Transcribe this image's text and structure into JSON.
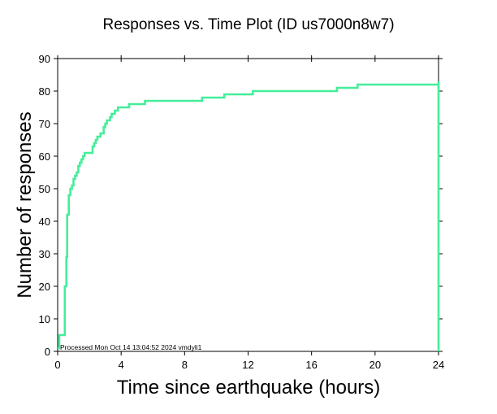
{
  "chart_data": {
    "type": "line",
    "title": "Responses vs. Time Plot (ID us7000n8w7)",
    "xlabel": "Time since earthquake (hours)",
    "ylabel": "Number of responses",
    "xlim": [
      0,
      24
    ],
    "ylim": [
      0,
      90
    ],
    "x_ticks": [
      0,
      4,
      8,
      12,
      16,
      20,
      24
    ],
    "y_ticks": [
      0,
      10,
      20,
      30,
      40,
      50,
      60,
      70,
      80,
      90
    ],
    "x_tick_labels": [
      "0",
      "4",
      "8",
      "12",
      "16",
      "20",
      "24"
    ],
    "y_tick_labels": [
      "0",
      "10",
      "20",
      "30",
      "40",
      "50",
      "60",
      "70",
      "80",
      "90"
    ],
    "line_style": "step",
    "grid": false,
    "footnote": "Processed Mon Oct 14 13:04:52 2024 vmdyli1",
    "colors": {
      "series": "#44ee99",
      "axis": "#000000",
      "background": "#ffffff"
    },
    "series": [
      {
        "x": [
          0.0,
          0.1,
          0.45,
          0.55,
          0.6,
          0.7,
          0.8,
          0.9,
          1.0,
          1.1,
          1.2,
          1.3,
          1.4,
          1.5,
          1.6,
          1.7,
          1.8,
          2.2,
          2.3,
          2.4,
          2.5,
          2.7,
          2.9,
          3.0,
          3.1,
          3.3,
          3.4,
          3.6,
          3.8,
          4.1,
          4.5,
          5.5,
          9.1,
          10.5,
          12.3,
          17.6,
          18.9,
          24.0,
          24.0
        ],
        "y": [
          1,
          5,
          20,
          29,
          42,
          48,
          50,
          51,
          53,
          54,
          55,
          57,
          58,
          59,
          60,
          61,
          61,
          63,
          64,
          65,
          66,
          67,
          69,
          70,
          71,
          72,
          73,
          74,
          75,
          75,
          76,
          77,
          78,
          79,
          80,
          81,
          82,
          83,
          0
        ]
      }
    ]
  }
}
